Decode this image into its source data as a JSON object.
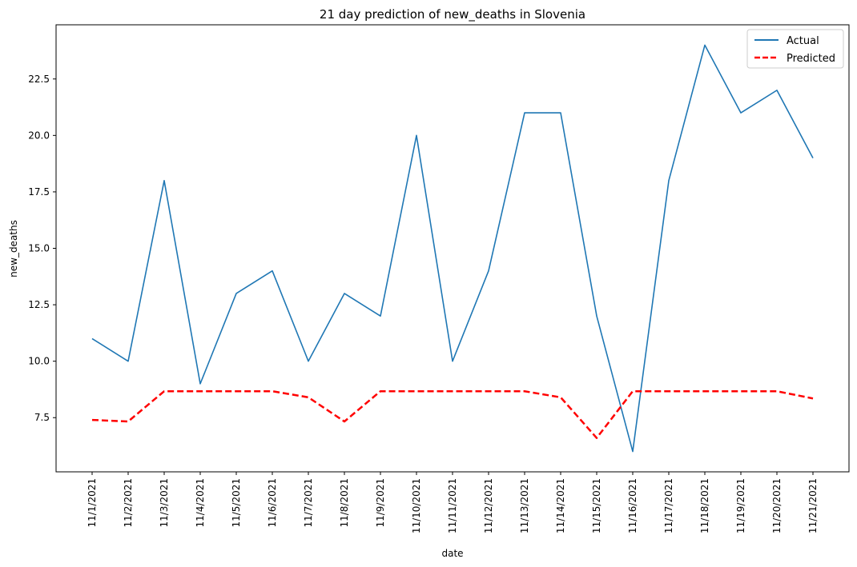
{
  "chart_data": {
    "type": "line",
    "title": "21 day prediction of new_deaths in Slovenia",
    "xlabel": "date",
    "ylabel": "new_deaths",
    "categories": [
      "11/1/2021",
      "11/2/2021",
      "11/3/2021",
      "11/4/2021",
      "11/5/2021",
      "11/6/2021",
      "11/7/2021",
      "11/8/2021",
      "11/9/2021",
      "11/10/2021",
      "11/11/2021",
      "11/12/2021",
      "11/13/2021",
      "11/14/2021",
      "11/15/2021",
      "11/16/2021",
      "11/17/2021",
      "11/18/2021",
      "11/19/2021",
      "11/20/2021",
      "11/21/2021"
    ],
    "series": [
      {
        "name": "Actual",
        "color": "#1f77b4",
        "dash": "solid",
        "values": [
          11,
          10,
          18,
          9,
          13,
          14,
          10,
          13,
          12,
          20,
          10,
          14,
          21,
          21,
          12,
          6,
          18,
          24,
          21,
          22,
          19
        ]
      },
      {
        "name": "Predicted",
        "color": "#ff0000",
        "dash": "dashed",
        "values": [
          7.4,
          7.33,
          8.67,
          8.67,
          8.67,
          8.67,
          8.4,
          7.33,
          8.67,
          8.67,
          8.67,
          8.67,
          8.67,
          8.4,
          6.6,
          8.67,
          8.67,
          8.67,
          8.67,
          8.67,
          8.35
        ]
      }
    ],
    "yticks": [
      "7.5",
      "10.0",
      "12.5",
      "15.0",
      "17.5",
      "20.0",
      "22.5"
    ],
    "ylim": [
      5.1,
      24.9
    ],
    "grid": false,
    "legend_position": "top-right"
  }
}
